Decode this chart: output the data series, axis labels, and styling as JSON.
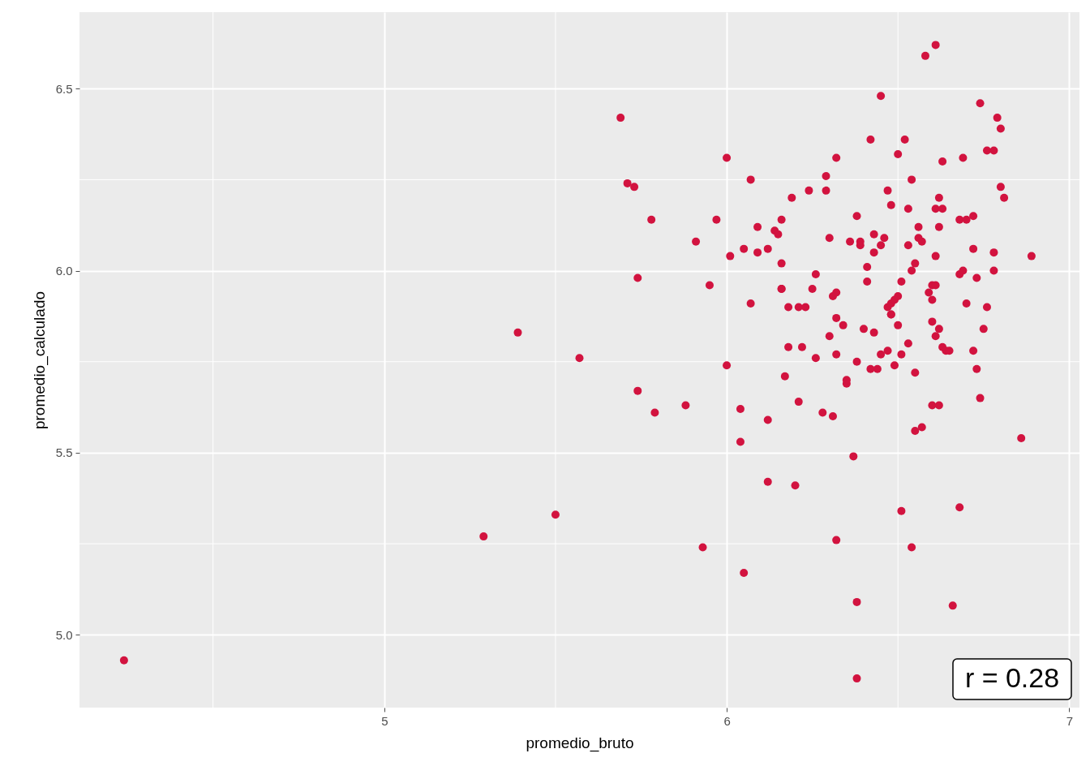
{
  "chart_data": {
    "type": "scatter",
    "xlabel": "promedio_bruto",
    "ylabel": "promedio_calculado",
    "xlim": [
      4.11,
      7.03
    ],
    "ylim": [
      4.8,
      6.71
    ],
    "xticks": [
      5,
      6,
      7
    ],
    "yticks": [
      {
        "value": 5,
        "label": "5.0"
      },
      {
        "value": 5.5,
        "label": "5.5"
      },
      {
        "value": 6,
        "label": "6.0"
      },
      {
        "value": 6.5,
        "label": "6.5"
      }
    ],
    "grid": true,
    "marker": "circle",
    "annotations": [
      "r = 0.28"
    ],
    "series": [
      {
        "color": "#d2133f",
        "x": [
          4.24,
          5.29,
          5.39,
          5.5,
          5.57,
          5.69,
          5.71,
          5.73,
          5.74,
          5.74,
          5.78,
          5.79,
          5.88,
          5.91,
          5.93,
          5.95,
          5.97,
          6.0,
          6.0,
          6.01,
          6.04,
          6.04,
          6.05,
          6.05,
          6.07,
          6.07,
          6.09,
          6.09,
          6.12,
          6.12,
          6.12,
          6.14,
          6.15,
          6.16,
          6.16,
          6.16,
          6.16,
          6.17,
          6.18,
          6.18,
          6.19,
          6.2,
          6.21,
          6.21,
          6.22,
          6.23,
          6.24,
          6.25,
          6.26,
          6.26,
          6.28,
          6.29,
          6.29,
          6.3,
          6.3,
          6.31,
          6.31,
          6.32,
          6.32,
          6.32,
          6.32,
          6.32,
          6.34,
          6.35,
          6.35,
          6.36,
          6.37,
          6.38,
          6.38,
          6.38,
          6.38,
          6.39,
          6.39,
          6.4,
          6.41,
          6.41,
          6.42,
          6.42,
          6.43,
          6.43,
          6.43,
          6.44,
          6.45,
          6.45,
          6.45,
          6.46,
          6.47,
          6.47,
          6.47,
          6.48,
          6.48,
          6.48,
          6.48,
          6.49,
          6.49,
          6.5,
          6.5,
          6.5,
          6.51,
          6.51,
          6.51,
          6.52,
          6.53,
          6.53,
          6.53,
          6.54,
          6.54,
          6.54,
          6.55,
          6.55,
          6.55,
          6.56,
          6.56,
          6.57,
          6.57,
          6.58,
          6.59,
          6.6,
          6.6,
          6.6,
          6.6,
          6.61,
          6.61,
          6.61,
          6.61,
          6.61,
          6.62,
          6.62,
          6.62,
          6.62,
          6.63,
          6.63,
          6.63,
          6.64,
          6.65,
          6.66,
          6.68,
          6.68,
          6.68,
          6.69,
          6.69,
          6.7,
          6.7,
          6.72,
          6.72,
          6.72,
          6.73,
          6.73,
          6.74,
          6.74,
          6.75,
          6.76,
          6.76,
          6.78,
          6.78,
          6.78,
          6.79,
          6.8,
          6.8,
          6.81,
          6.86,
          6.89
        ],
        "values": [
          4.93,
          5.27,
          5.83,
          5.33,
          5.76,
          6.42,
          6.24,
          6.23,
          5.98,
          5.67,
          6.14,
          5.61,
          5.63,
          6.08,
          5.24,
          5.96,
          6.14,
          5.74,
          6.31,
          6.04,
          5.62,
          5.53,
          6.06,
          5.17,
          5.91,
          6.25,
          6.12,
          6.05,
          6.06,
          5.59,
          5.42,
          6.11,
          6.1,
          6.14,
          5.95,
          6.02,
          5.95,
          5.71,
          5.79,
          5.9,
          6.2,
          5.41,
          5.9,
          5.64,
          5.79,
          5.9,
          6.22,
          5.95,
          5.76,
          5.99,
          5.61,
          6.26,
          6.22,
          5.82,
          6.09,
          5.93,
          5.6,
          5.77,
          6.31,
          5.94,
          5.87,
          5.26,
          5.85,
          5.69,
          5.7,
          6.08,
          5.49,
          4.88,
          6.15,
          5.75,
          5.09,
          6.08,
          6.07,
          5.84,
          5.97,
          6.01,
          6.36,
          5.73,
          6.1,
          5.83,
          6.05,
          5.73,
          6.48,
          6.07,
          5.77,
          6.09,
          6.22,
          5.9,
          5.78,
          5.91,
          5.88,
          6.18,
          5.88,
          5.92,
          5.74,
          5.85,
          5.93,
          6.32,
          5.77,
          5.97,
          5.34,
          6.36,
          6.17,
          6.07,
          5.8,
          6.25,
          5.24,
          6.0,
          5.72,
          5.56,
          6.02,
          6.12,
          6.09,
          5.57,
          6.08,
          6.59,
          5.94,
          5.92,
          5.86,
          5.63,
          5.96,
          6.04,
          6.62,
          5.96,
          6.17,
          5.82,
          5.84,
          5.63,
          6.2,
          6.12,
          6.3,
          5.79,
          6.17,
          5.78,
          5.78,
          5.08,
          5.99,
          6.14,
          5.35,
          6.0,
          6.31,
          6.14,
          5.91,
          6.15,
          6.06,
          5.78,
          5.73,
          5.98,
          6.46,
          5.65,
          5.84,
          5.9,
          6.33,
          6.33,
          6.05,
          6.0,
          6.42,
          6.23,
          6.39,
          6.2,
          5.54,
          6.04
        ]
      }
    ]
  }
}
